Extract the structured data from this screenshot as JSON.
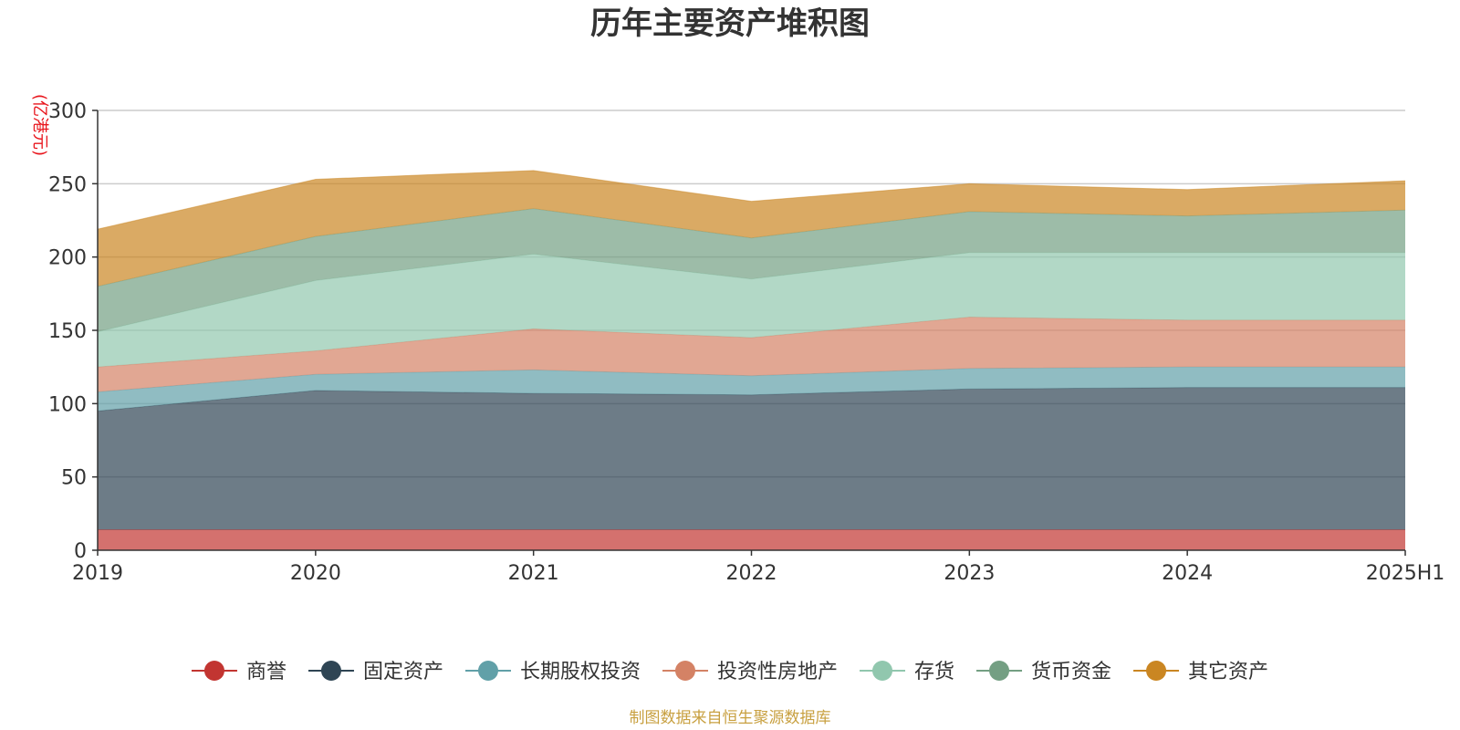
{
  "chart_data": {
    "type": "area",
    "stacked": true,
    "title": "历年主要资产堆积图",
    "y_unit": "(亿港元)",
    "categories": [
      "2019",
      "2020",
      "2021",
      "2022",
      "2023",
      "2024",
      "2025H1"
    ],
    "ylim": [
      0,
      300
    ],
    "yticks": [
      0,
      50,
      100,
      150,
      200,
      250,
      300
    ],
    "grid": true,
    "legend_position": "bottom",
    "series": [
      {
        "name": "商誉",
        "color": "#c23531",
        "values": [
          14,
          14,
          14,
          14,
          14,
          14,
          14
        ]
      },
      {
        "name": "固定资产",
        "color": "#2f4554",
        "values": [
          81,
          95,
          93,
          92,
          96,
          97,
          97
        ]
      },
      {
        "name": "长期股权投资",
        "color": "#61a0a8",
        "values": [
          13,
          11,
          16,
          13,
          14,
          14,
          14
        ]
      },
      {
        "name": "投资性房地产",
        "color": "#d48265",
        "values": [
          17,
          16,
          28,
          26,
          35,
          32,
          32
        ]
      },
      {
        "name": "存货",
        "color": "#91c7ae",
        "values": [
          24,
          48,
          51,
          40,
          44,
          46,
          46
        ]
      },
      {
        "name": "货币资金",
        "color": "#749f83",
        "values": [
          31,
          30,
          31,
          28,
          28,
          25,
          29
        ]
      },
      {
        "name": "其它资产",
        "color": "#ca8622",
        "values": [
          39,
          39,
          26,
          25,
          19,
          18,
          20
        ]
      }
    ]
  },
  "source": {
    "text": "制图数据来自恒生聚源数据库",
    "color": "#c8a040"
  }
}
